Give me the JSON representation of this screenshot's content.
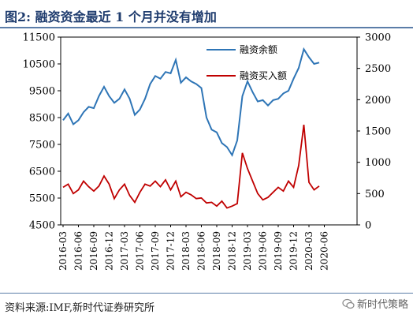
{
  "header": {
    "title": "图2:   融资资金最近 1 个月并没有增加"
  },
  "footer": {
    "source": "资料来源:IMF,新时代证券研究所",
    "watermark": "新时代策略"
  },
  "colors": {
    "title": "#1F3C6E",
    "balance_line": "#2E75B6",
    "buy_line": "#C00000",
    "rule": "#5B7DA8"
  },
  "icons": {
    "watermark": "wechat-icon"
  },
  "chart_data": {
    "type": "line",
    "title": "",
    "left_axis": {
      "range": [
        4500,
        11500
      ],
      "ticks": [
        "11500",
        "10500",
        "9500",
        "8500",
        "7500",
        "6500",
        "5500",
        "4500"
      ]
    },
    "right_axis": {
      "range": [
        0,
        3000
      ],
      "ticks": [
        "3000",
        "2500",
        "2000",
        "1500",
        "1000",
        "500",
        "0"
      ]
    },
    "x_ticks": [
      "2016-03",
      "2016-06",
      "2016-09",
      "2016-12",
      "2017-03",
      "2017-06",
      "2017-09",
      "2017-12",
      "2018-03",
      "2018-06",
      "2018-09",
      "2018-12",
      "2019-03",
      "2019-06",
      "2019-09",
      "2019-12",
      "2020-03",
      "2020-06"
    ],
    "legend": {
      "position": "top-right",
      "entries": [
        "融资余额",
        "融资买入额"
      ]
    },
    "series": [
      {
        "name": "融资余额",
        "axis": "left",
        "x": [
          "2016-03",
          "2016-04",
          "2016-05",
          "2016-06",
          "2016-07",
          "2016-08",
          "2016-09",
          "2016-10",
          "2016-11",
          "2016-12",
          "2017-01",
          "2017-02",
          "2017-03",
          "2017-04",
          "2017-05",
          "2017-06",
          "2017-07",
          "2017-08",
          "2017-09",
          "2017-10",
          "2017-11",
          "2017-12",
          "2018-01",
          "2018-02",
          "2018-03",
          "2018-04",
          "2018-05",
          "2018-06",
          "2018-07",
          "2018-08",
          "2018-09",
          "2018-10",
          "2018-11",
          "2018-12",
          "2019-01",
          "2019-02",
          "2019-03",
          "2019-04",
          "2019-05",
          "2019-06",
          "2019-07",
          "2019-08",
          "2019-09",
          "2019-10",
          "2019-11",
          "2019-12",
          "2020-01",
          "2020-02",
          "2020-03",
          "2020-04",
          "2020-05"
        ],
        "values": [
          8400,
          8650,
          8250,
          8400,
          8700,
          8900,
          8850,
          9300,
          9650,
          9300,
          9050,
          9200,
          9550,
          9200,
          8600,
          8800,
          9200,
          9750,
          10050,
          9950,
          10200,
          10150,
          10650,
          9800,
          10000,
          9850,
          9750,
          9600,
          8500,
          8050,
          7950,
          7550,
          7400,
          7100,
          7650,
          9300,
          9850,
          9450,
          9100,
          9150,
          8950,
          9150,
          9200,
          9400,
          9500,
          9950,
          10350,
          11050,
          10750,
          10500,
          10550
        ]
      },
      {
        "name": "融资买入额",
        "axis": "right",
        "x": [
          "2016-03",
          "2016-04",
          "2016-05",
          "2016-06",
          "2016-07",
          "2016-08",
          "2016-09",
          "2016-10",
          "2016-11",
          "2016-12",
          "2017-01",
          "2017-02",
          "2017-03",
          "2017-04",
          "2017-05",
          "2017-06",
          "2017-07",
          "2017-08",
          "2017-09",
          "2017-10",
          "2017-11",
          "2017-12",
          "2018-01",
          "2018-02",
          "2018-03",
          "2018-04",
          "2018-05",
          "2018-06",
          "2018-07",
          "2018-08",
          "2018-09",
          "2018-10",
          "2018-11",
          "2018-12",
          "2019-01",
          "2019-02",
          "2019-03",
          "2019-04",
          "2019-05",
          "2019-06",
          "2019-07",
          "2019-08",
          "2019-09",
          "2019-10",
          "2019-11",
          "2019-12",
          "2020-01",
          "2020-02",
          "2020-03",
          "2020-04",
          "2020-05"
        ],
        "values": [
          600,
          650,
          500,
          560,
          700,
          610,
          540,
          620,
          780,
          650,
          420,
          560,
          650,
          470,
          360,
          520,
          650,
          620,
          700,
          610,
          720,
          560,
          700,
          450,
          520,
          480,
          420,
          430,
          350,
          360,
          300,
          380,
          270,
          300,
          340,
          1150,
          900,
          700,
          500,
          400,
          440,
          520,
          600,
          540,
          700,
          600,
          950,
          1600,
          680,
          560,
          620
        ]
      }
    ]
  }
}
